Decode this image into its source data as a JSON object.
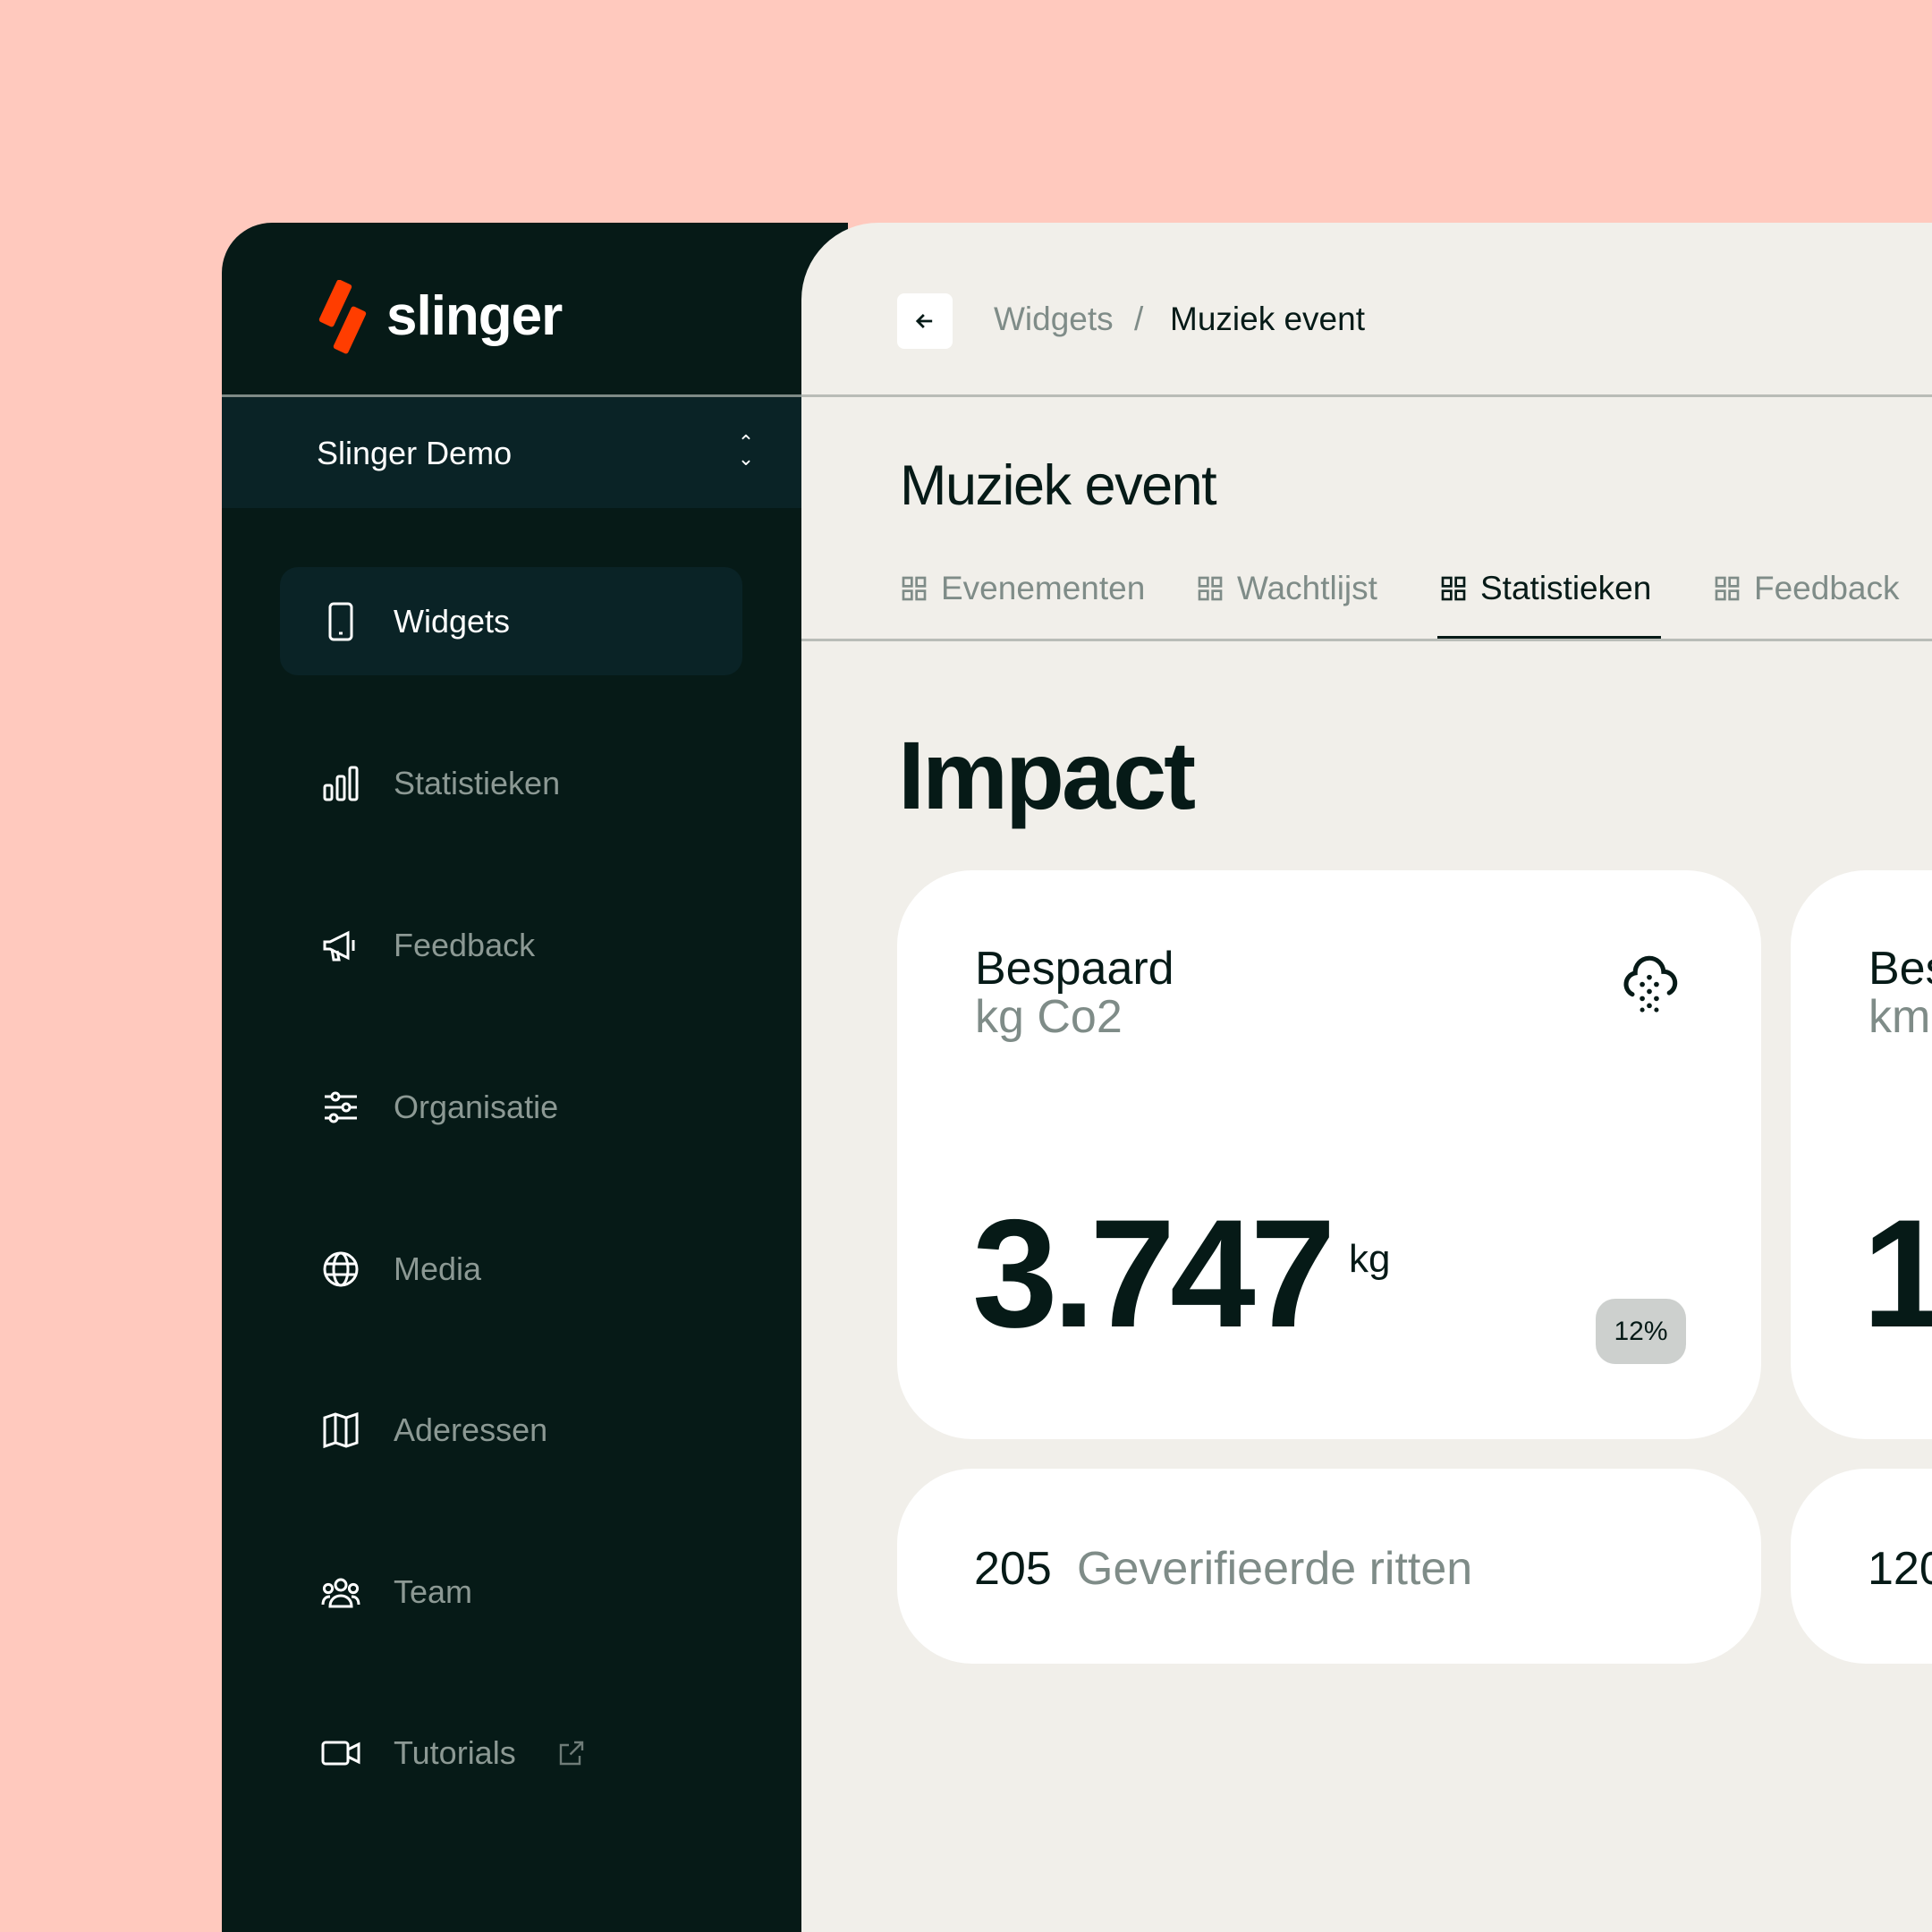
{
  "colors": {
    "background": "#FFC9BE",
    "sidebar": "#061A17",
    "accent": "#FF3D00",
    "main": "#F1EFEA"
  },
  "brand": {
    "name": "slinger",
    "icon": "slinger-logo"
  },
  "organization": {
    "name": "Slinger Demo",
    "icon": "chevron-up-down-icon"
  },
  "sidebar": {
    "items": [
      {
        "label": "Widgets",
        "icon": "smartphone-icon",
        "active": true
      },
      {
        "label": "Statistieken",
        "icon": "bar-chart-icon"
      },
      {
        "label": "Feedback",
        "icon": "megaphone-icon"
      },
      {
        "label": "Organisatie",
        "icon": "sliders-icon"
      },
      {
        "label": "Media",
        "icon": "globe-icon"
      },
      {
        "label": "Aderessen",
        "icon": "map-icon"
      },
      {
        "label": "Team",
        "icon": "users-icon"
      },
      {
        "label": "Tutorials",
        "icon": "video-icon",
        "external": true
      }
    ]
  },
  "breadcrumb": {
    "back_icon": "arrow-left-icon",
    "items": [
      "Widgets",
      "Muziek event"
    ],
    "separator": "/"
  },
  "page": {
    "title": "Muziek event",
    "section": "Impact"
  },
  "tabs": [
    {
      "label": "Evenementen",
      "icon": "grid-icon"
    },
    {
      "label": "Wachtlijst",
      "icon": "grid-icon"
    },
    {
      "label": "Statistieken",
      "icon": "grid-icon",
      "active": true
    },
    {
      "label": "Feedback",
      "icon": "grid-icon"
    }
  ],
  "cards": [
    {
      "title": "Bespaard",
      "subtitle": "kg Co2",
      "icon": "cloud-particles-icon",
      "value": "3.747",
      "unit": "kg",
      "change": "12%",
      "footer_value": "205",
      "footer_label": "Geverifieerde ritten"
    },
    {
      "title": "Bes",
      "subtitle": "km",
      "value": "1",
      "footer_value": "120"
    }
  ]
}
